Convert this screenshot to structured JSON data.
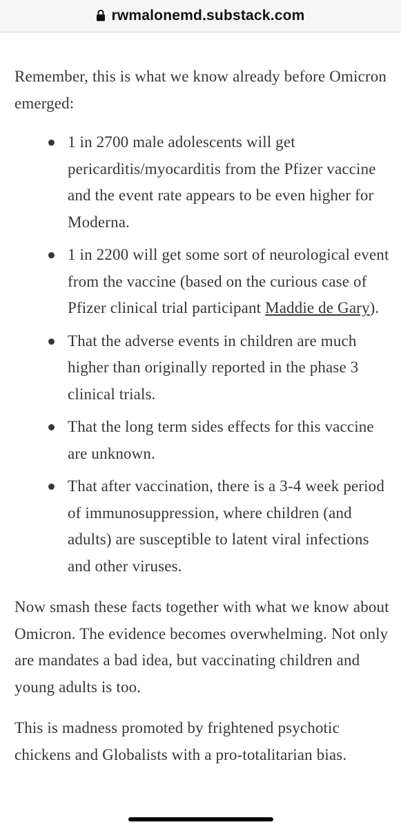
{
  "browser": {
    "url": "rwmalonemd.substack.com",
    "lock_icon": "lock-icon"
  },
  "article": {
    "intro": "Remember, this is what we know already before Omicron emerged:",
    "bullets": [
      {
        "text": "1 in 2700 male adolescents will get pericarditis/myocarditis from the Pfizer vaccine and the event rate appears to be even higher for Moderna."
      },
      {
        "text_before": "1 in 2200 will get some sort of neurological event from the vaccine (based on the curious case of Pfizer clinical trial participant ",
        "link": "Maddie de Gary",
        "text_after": ")."
      },
      {
        "text": "That the adverse events in children are much higher than originally reported in the phase 3 clinical trials."
      },
      {
        "text": "That the long term sides effects for this vaccine are unknown."
      },
      {
        "text": "That after vaccination, there is a 3-4 week period of immunosuppression, where children (and adults) are susceptible to latent viral infections and other viruses."
      }
    ],
    "paragraph2": "Now smash these facts together with what we know about Omicron. The evidence becomes overwhelming. Not only are mandates a bad idea, but vaccinating children and young adults is too.",
    "paragraph3": "This is madness promoted by frightened psychotic chickens and Globalists with a pro-totalitarian bias."
  },
  "colors": {
    "text": "#363737",
    "address_bar_bg": "#f6f6f6",
    "background": "#ffffff"
  }
}
